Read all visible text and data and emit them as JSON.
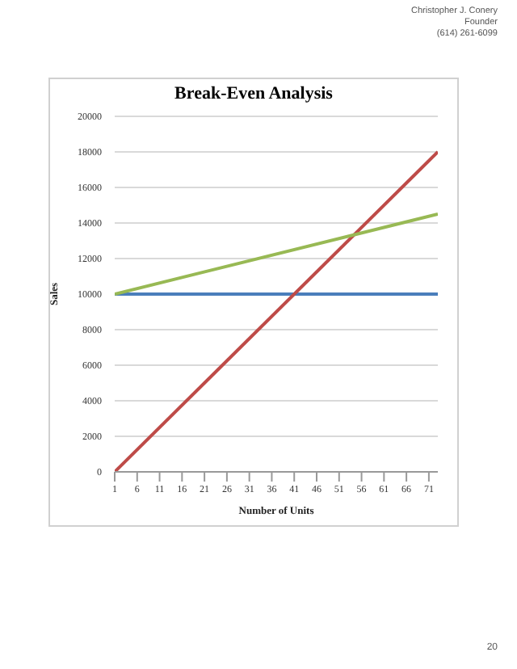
{
  "chart_data": {
    "type": "line",
    "title": "Break-Even Analysis",
    "xlabel": "Number of Units",
    "ylabel": "Sales",
    "x": [
      1,
      73
    ],
    "series": [
      {
        "color": "#4a7ebb",
        "values": [
          10000,
          10000
        ]
      },
      {
        "color": "#be4b48",
        "values": [
          0,
          18000
        ]
      },
      {
        "color": "#98b954",
        "values": [
          10000,
          14500
        ]
      }
    ],
    "xlim": [
      1,
      73
    ],
    "xticks": [
      1,
      6,
      11,
      16,
      21,
      26,
      31,
      36,
      41,
      46,
      51,
      56,
      61,
      66,
      71
    ],
    "ylim": [
      0,
      20000
    ],
    "yticks": [
      0,
      2000,
      4000,
      6000,
      8000,
      10000,
      12000,
      14000,
      16000,
      18000,
      20000
    ],
    "grid": "y",
    "legend": false,
    "marker": "none",
    "line_style": "solid",
    "annotations": [
      "Christopher J. Conery",
      "Founder",
      "(614) 261-6099",
      "20"
    ]
  }
}
